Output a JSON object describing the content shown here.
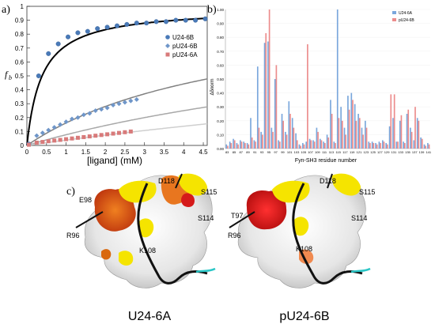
{
  "panels": {
    "a": {
      "label": "a)"
    },
    "b": {
      "label": "b)"
    },
    "c": {
      "label": "c)"
    }
  },
  "chart_data": [
    {
      "type": "scatter",
      "panel": "a",
      "xlabel": "[ligand] (mM)",
      "ylabel": "fb",
      "xlim": [
        0,
        4.6
      ],
      "ylim": [
        0,
        1.0
      ],
      "xticks": [
        "0",
        "0.5",
        "1",
        "1.5",
        "2",
        "2.5",
        "3",
        "3.5",
        "4",
        "4.5"
      ],
      "yticks": [
        "0",
        "0.1",
        "0.2",
        "0.3",
        "0.4",
        "0.5",
        "0.6",
        "0.7",
        "0.8",
        "0.9",
        "1"
      ],
      "legend_position": "right",
      "series": [
        {
          "name": "U24-6B",
          "color": "#4a7ab8",
          "marker": "circle",
          "points": [
            [
              0.05,
              0.01
            ],
            [
              0.3,
              0.5
            ],
            [
              0.55,
              0.66
            ],
            [
              0.8,
              0.73
            ],
            [
              1.05,
              0.78
            ],
            [
              1.3,
              0.81
            ],
            [
              1.55,
              0.82
            ],
            [
              1.8,
              0.84
            ],
            [
              2.05,
              0.85
            ],
            [
              2.3,
              0.86
            ],
            [
              2.55,
              0.87
            ],
            [
              2.8,
              0.88
            ],
            [
              3.05,
              0.88
            ],
            [
              3.3,
              0.89
            ],
            [
              3.55,
              0.89
            ],
            [
              3.8,
              0.9
            ],
            [
              4.05,
              0.9
            ],
            [
              4.3,
              0.9
            ],
            [
              4.55,
              0.91
            ]
          ]
        },
        {
          "name": "pU24-6B",
          "color": "#6f96c9",
          "marker": "diamond",
          "points": [
            [
              0.05,
              0.01
            ],
            [
              0.25,
              0.07
            ],
            [
              0.4,
              0.09
            ],
            [
              0.55,
              0.11
            ],
            [
              0.7,
              0.13
            ],
            [
              0.85,
              0.15
            ],
            [
              1.0,
              0.17
            ],
            [
              1.15,
              0.19
            ],
            [
              1.3,
              0.2
            ],
            [
              1.45,
              0.22
            ],
            [
              1.6,
              0.23
            ],
            [
              1.75,
              0.25
            ],
            [
              1.9,
              0.26
            ],
            [
              2.05,
              0.27
            ],
            [
              2.2,
              0.29
            ],
            [
              2.35,
              0.3
            ],
            [
              2.5,
              0.31
            ],
            [
              2.65,
              0.32
            ],
            [
              2.8,
              0.33
            ]
          ]
        },
        {
          "name": "pU24-6A",
          "color": "#d87a7a",
          "marker": "square",
          "points": [
            [
              0.05,
              0.005
            ],
            [
              0.25,
              0.02
            ],
            [
              0.4,
              0.025
            ],
            [
              0.55,
              0.03
            ],
            [
              0.7,
              0.035
            ],
            [
              0.85,
              0.04
            ],
            [
              1.0,
              0.045
            ],
            [
              1.15,
              0.05
            ],
            [
              1.3,
              0.055
            ],
            [
              1.45,
              0.06
            ],
            [
              1.6,
              0.065
            ],
            [
              1.75,
              0.07
            ],
            [
              1.9,
              0.075
            ],
            [
              2.05,
              0.08
            ],
            [
              2.2,
              0.085
            ],
            [
              2.35,
              0.09
            ],
            [
              2.5,
              0.095
            ],
            [
              2.65,
              0.1
            ]
          ]
        }
      ],
      "fit_curves": [
        {
          "color": "#000000",
          "width": 2.0,
          "kd": 0.38,
          "bmax": 0.99
        },
        {
          "color": "#808080",
          "width": 1.5,
          "kd": 5.5,
          "bmax": 1.05
        },
        {
          "color": "#a8a8a8",
          "width": 1.5,
          "kd": 12,
          "bmax": 1.0
        },
        {
          "color": "#cfcfcf",
          "width": 1.5,
          "kd": 25,
          "bmax": 1.0
        }
      ]
    },
    {
      "type": "bar",
      "panel": "b",
      "xlabel": "Fyn-SH3 residue number",
      "ylabel": "Δδnorm",
      "ylim": [
        0,
        1.0
      ],
      "yticks": [
        "0.00",
        "0.10",
        "0.20",
        "0.30",
        "0.40",
        "0.50",
        "0.60",
        "0.70",
        "0.80",
        "0.90",
        "1.00"
      ],
      "xticks": [
        "83",
        "85",
        "87",
        "89",
        "91",
        "93",
        "95",
        "97",
        "99",
        "101",
        "103",
        "105",
        "107",
        "109",
        "111",
        "113",
        "115",
        "117",
        "119",
        "121",
        "123",
        "125",
        "127",
        "129",
        "131",
        "133",
        "135",
        "137",
        "139",
        "141"
      ],
      "legend_position": "top-right",
      "series": [
        {
          "name": "U24-6A",
          "color": "#7aa7dc",
          "values": [
            0.03,
            0.05,
            0.07,
            0.04,
            0.06,
            0.05,
            0.04,
            0.22,
            0.06,
            0.59,
            0.12,
            0.76,
            0.77,
            0.15,
            0.5,
            0.06,
            0.25,
            0.12,
            0.34,
            0.22,
            0.11,
            0.03,
            0.04,
            0.05,
            0.07,
            0.06,
            0.15,
            0.07,
            0.05,
            0.1,
            0.35,
            0.05,
            1.0,
            0.3,
            0.15,
            0.38,
            0.4,
            0.32,
            0.25,
            0.15,
            0.2,
            0.05,
            0.05,
            0.04,
            0.05,
            0.06,
            0.04,
            0.16,
            0.22,
            0.05,
            0.2,
            0.05,
            0.25,
            0.15,
            0.06,
            0.22,
            0.08,
            0.03,
            0.04
          ]
        },
        {
          "name": "pU24-6B",
          "color": "#ec8c8c",
          "values": [
            0.02,
            0.04,
            0.06,
            0.03,
            0.05,
            0.04,
            0.03,
            0.08,
            0.05,
            0.15,
            0.1,
            0.83,
            1.0,
            0.12,
            0.6,
            0.05,
            0.2,
            0.1,
            0.25,
            0.15,
            0.06,
            0.02,
            0.03,
            0.75,
            0.06,
            0.05,
            0.12,
            0.06,
            0.04,
            0.08,
            0.25,
            0.04,
            0.22,
            0.2,
            0.1,
            0.28,
            0.35,
            0.2,
            0.22,
            0.1,
            0.15,
            0.04,
            0.04,
            0.03,
            0.04,
            0.05,
            0.03,
            0.39,
            0.39,
            0.05,
            0.24,
            0.04,
            0.28,
            0.12,
            0.3,
            0.2,
            0.07,
            0.02,
            0.03
          ]
        }
      ]
    }
  ],
  "panel_c": {
    "left": {
      "caption": "U24-6A",
      "labels": {
        "E98": "E98",
        "D118": "D118",
        "S115": "S115",
        "S114": "S114",
        "R96": "R96",
        "K108": "K108"
      }
    },
    "right": {
      "caption": "pU24-6B",
      "labels": {
        "D118": "D118",
        "S115": "S115",
        "T97": "T97",
        "S114": "S114",
        "R96": "R96",
        "K108": "K108"
      }
    }
  }
}
